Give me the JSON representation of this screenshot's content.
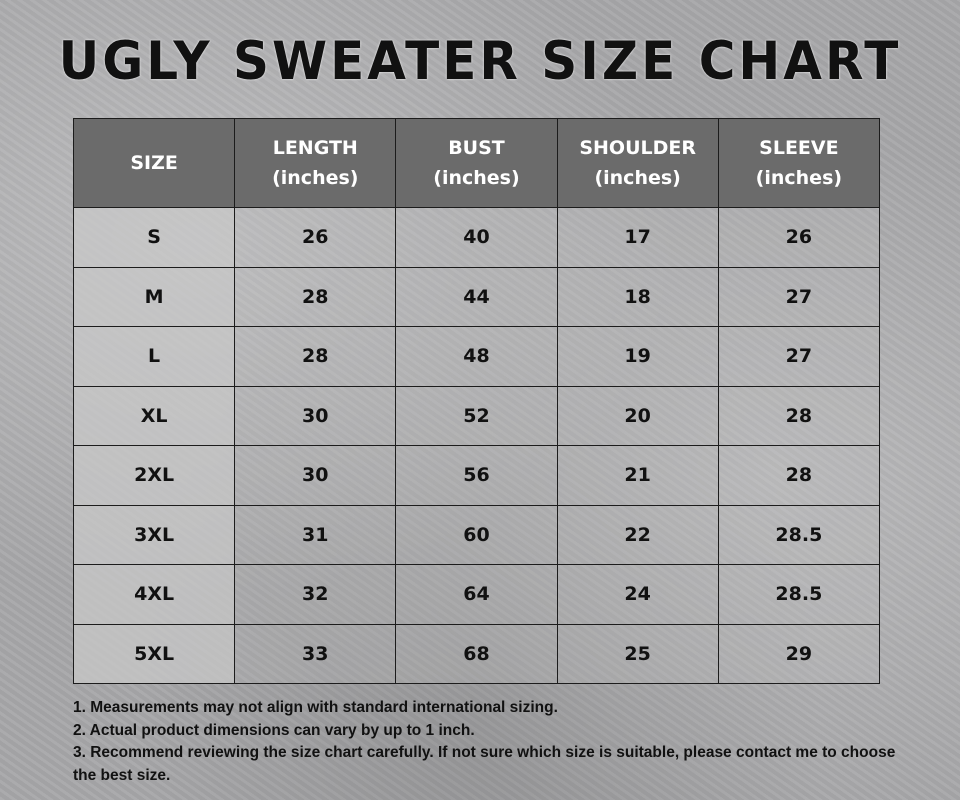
{
  "title": "UGLY SWEATER SIZE CHART",
  "columns": [
    {
      "label": "SIZE",
      "unit": ""
    },
    {
      "label": "LENGTH",
      "unit": "(inches)"
    },
    {
      "label": "BUST",
      "unit": "(inches)"
    },
    {
      "label": "SHOULDER",
      "unit": "(inches)"
    },
    {
      "label": "SLEEVE",
      "unit": "(inches)"
    }
  ],
  "rows": [
    [
      "S",
      "26",
      "40",
      "17",
      "26"
    ],
    [
      "M",
      "28",
      "44",
      "18",
      "27"
    ],
    [
      "L",
      "28",
      "48",
      "19",
      "27"
    ],
    [
      "XL",
      "30",
      "52",
      "20",
      "28"
    ],
    [
      "2XL",
      "30",
      "56",
      "21",
      "28"
    ],
    [
      "3XL",
      "31",
      "60",
      "22",
      "28.5"
    ],
    [
      "4XL",
      "32",
      "64",
      "24",
      "28.5"
    ],
    [
      "5XL",
      "33",
      "68",
      "25",
      "29"
    ]
  ],
  "notes": [
    "1. Measurements may not align with standard international sizing.",
    "2. Actual product dimensions can vary by up to 1 inch.",
    "3. Recommend reviewing the size chart carefully. If not sure which size is suitable, please contact me to choose the best size."
  ],
  "colors": {
    "header_bg": "#6b6b6b",
    "header_text": "#ffffff",
    "size_col_bg": "#c8c8c8",
    "text": "#111111"
  }
}
